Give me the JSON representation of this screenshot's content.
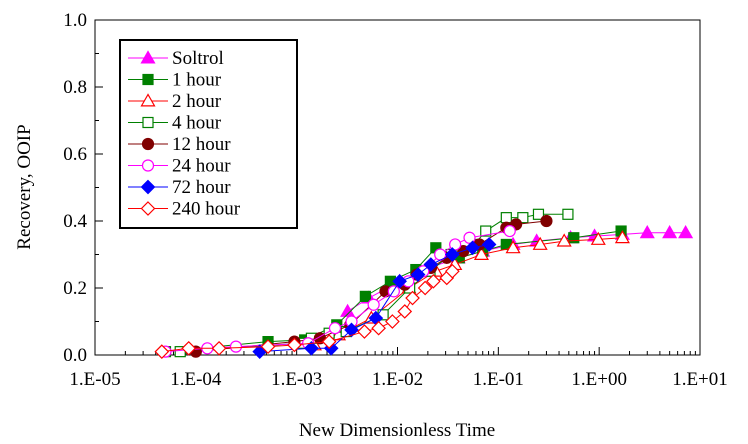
{
  "chart_data": {
    "type": "scatter",
    "title": "",
    "xlabel": "New Dimensionless Time",
    "ylabel": "Recovery, OOIP",
    "xscale": "log",
    "xlim": [
      1e-05,
      10
    ],
    "ylim": [
      0,
      1
    ],
    "x_ticks": [
      "1.E-05",
      "1.E-04",
      "1.E-03",
      "1.E-02",
      "1.E-01",
      "1.E+00",
      "1.E+01"
    ],
    "y_ticks": [
      "0.0",
      "0.2",
      "0.4",
      "0.6",
      "0.8",
      "1.0"
    ],
    "grid": false,
    "legend_position": "top-left",
    "series": [
      {
        "name": "Soltrol",
        "color": "#ff00ff",
        "marker": "triangle",
        "filled": true,
        "x": [
          0.0032,
          0.0052,
          0.0105,
          0.0205,
          0.04,
          0.07,
          0.14,
          0.24,
          0.52,
          0.9,
          1.7,
          3.0,
          5.0,
          7.2
        ],
        "y": [
          0.13,
          0.17,
          0.22,
          0.26,
          0.29,
          0.31,
          0.33,
          0.34,
          0.35,
          0.355,
          0.36,
          0.365,
          0.365,
          0.365
        ]
      },
      {
        "name": "1 hour",
        "color": "#008000",
        "marker": "square",
        "filled": true,
        "x": [
          5e-05,
          0.00052,
          0.0012,
          0.0025,
          0.0048,
          0.0085,
          0.0152,
          0.024,
          0.041,
          0.07,
          0.12,
          0.56,
          1.65
        ],
        "y": [
          0.01,
          0.04,
          0.045,
          0.09,
          0.175,
          0.22,
          0.255,
          0.32,
          0.29,
          0.31,
          0.33,
          0.35,
          0.37
        ]
      },
      {
        "name": "2 hour",
        "color": "#ff0000",
        "marker": "triangle",
        "filled": false,
        "x": [
          0.0015,
          0.0026,
          0.0055,
          0.013,
          0.024,
          0.037,
          0.068,
          0.14,
          0.26,
          0.45,
          0.98,
          1.7
        ],
        "y": [
          0.03,
          0.06,
          0.11,
          0.2,
          0.25,
          0.27,
          0.3,
          0.32,
          0.33,
          0.34,
          0.345,
          0.35
        ]
      },
      {
        "name": "4 hour",
        "color": "#008000",
        "marker": "square",
        "filled": false,
        "x": [
          7e-05,
          0.0011,
          0.0014,
          0.0021,
          0.0031,
          0.0072,
          0.0132,
          0.021,
          0.034,
          0.058,
          0.075,
          0.12,
          0.175,
          0.25,
          0.49
        ],
        "y": [
          0.01,
          0.035,
          0.05,
          0.065,
          0.07,
          0.12,
          0.2,
          0.25,
          0.3,
          0.33,
          0.37,
          0.41,
          0.41,
          0.42,
          0.42
        ]
      },
      {
        "name": "12 hour",
        "color": "#800000",
        "marker": "circle",
        "filled": true,
        "x": [
          0.0001,
          0.00095,
          0.0017,
          0.0034,
          0.0076,
          0.0118,
          0.0155,
          0.0215,
          0.0308,
          0.045,
          0.065,
          0.12,
          0.15,
          0.3
        ],
        "y": [
          0.01,
          0.04,
          0.05,
          0.09,
          0.19,
          0.21,
          0.24,
          0.26,
          0.29,
          0.31,
          0.33,
          0.38,
          0.39,
          0.4
        ]
      },
      {
        "name": "24 hour",
        "color": "#ff00ff",
        "marker": "circle",
        "filled": false,
        "x": [
          5e-05,
          0.00013,
          0.00025,
          0.0013,
          0.0024,
          0.0035,
          0.0058,
          0.0092,
          0.0128,
          0.018,
          0.0265,
          0.0373,
          0.0518,
          0.1298
        ],
        "y": [
          0.01,
          0.02,
          0.025,
          0.035,
          0.08,
          0.1,
          0.15,
          0.19,
          0.22,
          0.25,
          0.3,
          0.33,
          0.35,
          0.37
        ]
      },
      {
        "name": "72 hour",
        "color": "#0000ff",
        "marker": "diamond",
        "filled": true,
        "x": [
          0.00043,
          0.0014,
          0.0022,
          0.0035,
          0.0061,
          0.0105,
          0.016,
          0.0214,
          0.035,
          0.0555,
          0.081
        ],
        "y": [
          0.01,
          0.02,
          0.02,
          0.075,
          0.11,
          0.22,
          0.24,
          0.27,
          0.3,
          0.32,
          0.33
        ]
      },
      {
        "name": "240 hour",
        "color": "#ff0000",
        "marker": "diamond",
        "filled": false,
        "x": [
          4.6e-05,
          8.5e-05,
          0.00017,
          0.00052,
          0.00095,
          0.0021,
          0.0047,
          0.0065,
          0.0089,
          0.0118,
          0.0141,
          0.0188,
          0.0227,
          0.0308,
          0.035
        ],
        "y": [
          0.01,
          0.02,
          0.02,
          0.025,
          0.03,
          0.04,
          0.07,
          0.08,
          0.1,
          0.13,
          0.17,
          0.2,
          0.22,
          0.23,
          0.25
        ]
      }
    ]
  }
}
